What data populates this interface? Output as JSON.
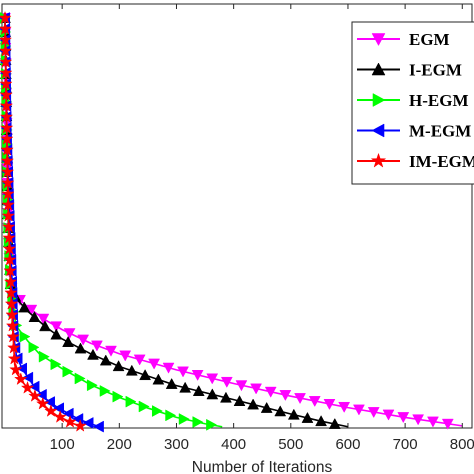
{
  "chart_data": {
    "type": "line",
    "title": "",
    "xlabel": "Number of Iterations",
    "ylabel": "",
    "xlim": [
      -10,
      820
    ],
    "ylim": [
      0,
      1
    ],
    "x_ticks": [
      "100",
      "200",
      "300",
      "400",
      "500",
      "600",
      "700",
      "800"
    ],
    "x_tick_values": [
      100,
      200,
      300,
      400,
      500,
      600,
      700,
      800
    ],
    "grid": false,
    "legend_position": "top-right",
    "series": [
      {
        "name": "EGM",
        "color": "#ff00ff",
        "marker": "triangle-down",
        "points": [
          [
            0,
            0.967
          ],
          [
            3,
            0.7
          ],
          [
            6,
            0.45
          ],
          [
            10,
            0.335
          ],
          [
            20,
            0.31
          ],
          [
            40,
            0.285
          ],
          [
            70,
            0.255
          ],
          [
            100,
            0.232
          ],
          [
            150,
            0.2
          ],
          [
            200,
            0.175
          ],
          [
            300,
            0.137
          ],
          [
            400,
            0.105
          ],
          [
            500,
            0.075
          ],
          [
            600,
            0.048
          ],
          [
            700,
            0.025
          ],
          [
            800,
            0.005
          ]
        ]
      },
      {
        "name": "I-EGM",
        "color": "#000000",
        "marker": "triangle-up",
        "points": [
          [
            0,
            0.967
          ],
          [
            3,
            0.7
          ],
          [
            6,
            0.46
          ],
          [
            10,
            0.33
          ],
          [
            20,
            0.305
          ],
          [
            40,
            0.275
          ],
          [
            70,
            0.24
          ],
          [
            100,
            0.21
          ],
          [
            150,
            0.175
          ],
          [
            200,
            0.145
          ],
          [
            300,
            0.1
          ],
          [
            400,
            0.067
          ],
          [
            500,
            0.033
          ],
          [
            550,
            0.017
          ],
          [
            600,
            0.003
          ]
        ]
      },
      {
        "name": "H-EGM",
        "color": "#00ff00",
        "marker": "triangle-right",
        "points": [
          [
            0,
            0.967
          ],
          [
            3,
            0.7
          ],
          [
            6,
            0.45
          ],
          [
            10,
            0.33
          ],
          [
            12,
            0.32
          ],
          [
            15,
            0.27
          ],
          [
            20,
            0.24
          ],
          [
            40,
            0.205
          ],
          [
            60,
            0.175
          ],
          [
            100,
            0.14
          ],
          [
            150,
            0.102
          ],
          [
            200,
            0.072
          ],
          [
            250,
            0.047
          ],
          [
            300,
            0.025
          ],
          [
            350,
            0.01
          ],
          [
            380,
            0.003
          ]
        ]
      },
      {
        "name": "M-EGM",
        "color": "#0000ff",
        "marker": "triangle-left",
        "points": [
          [
            0,
            0.967
          ],
          [
            3,
            0.7
          ],
          [
            8,
            0.5
          ],
          [
            12,
            0.36
          ],
          [
            15,
            0.22
          ],
          [
            20,
            0.17
          ],
          [
            30,
            0.14
          ],
          [
            50,
            0.1
          ],
          [
            70,
            0.07
          ],
          [
            90,
            0.05
          ],
          [
            110,
            0.035
          ],
          [
            130,
            0.02
          ],
          [
            150,
            0.01
          ],
          [
            165,
            0.003
          ]
        ]
      },
      {
        "name": "IM-EGM",
        "color": "#ff0000",
        "marker": "star",
        "points": [
          [
            0,
            0.967
          ],
          [
            3,
            0.7
          ],
          [
            6,
            0.5
          ],
          [
            10,
            0.33
          ],
          [
            14,
            0.22
          ],
          [
            17,
            0.15
          ],
          [
            20,
            0.13
          ],
          [
            30,
            0.11
          ],
          [
            45,
            0.085
          ],
          [
            60,
            0.065
          ],
          [
            75,
            0.045
          ],
          [
            90,
            0.03
          ],
          [
            105,
            0.02
          ],
          [
            120,
            0.01
          ],
          [
            135,
            0.003
          ]
        ]
      }
    ]
  }
}
